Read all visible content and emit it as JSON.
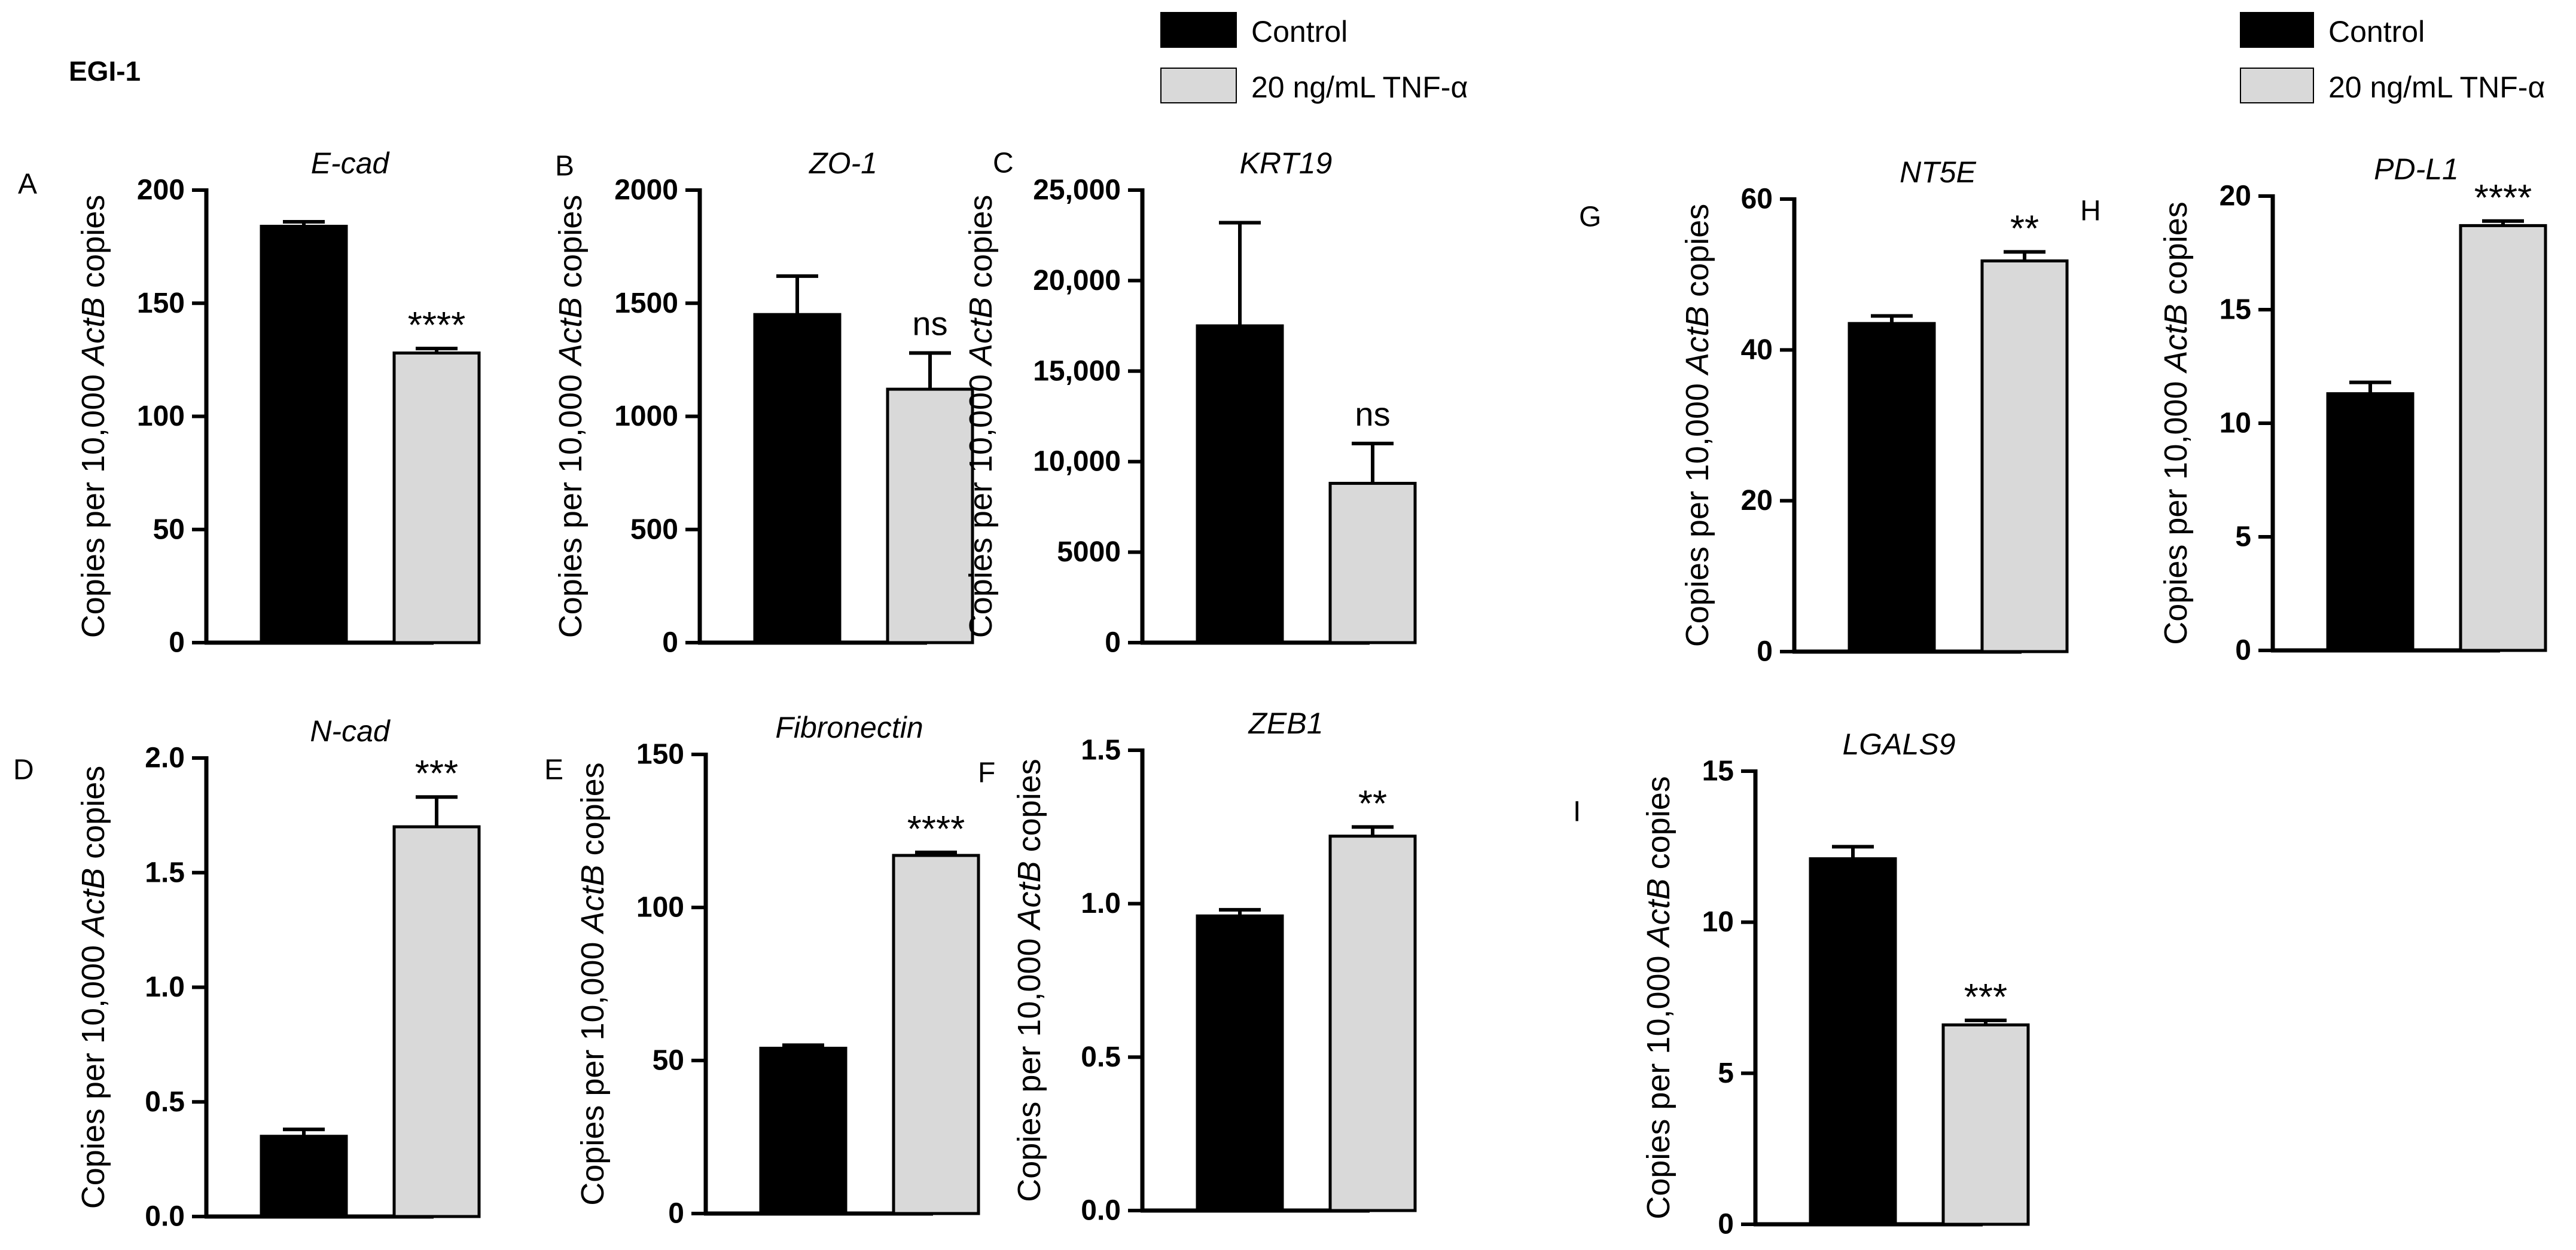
{
  "figure_title": "EGI-1",
  "legends": [
    {
      "control_label": "Control",
      "treatment_label": "20 ng/mL TNF-α"
    },
    {
      "control_label": "Control",
      "treatment_label": "20 ng/mL TNF-α"
    }
  ],
  "colors": {
    "control": "#000000",
    "treatment": "#d9d9d9",
    "axis": "#000000"
  },
  "ylabel_prefix": "Copies per 10,000 ",
  "ylabel_gene": "ActB",
  "ylabel_suffix": " copies",
  "chart_data": [
    {
      "type": "bar",
      "panel": "A",
      "title": "E-cad",
      "categories": [
        "Control",
        "20 ng/mL TNF-α"
      ],
      "values": [
        184,
        128
      ],
      "errors": [
        2,
        2
      ],
      "ylim": [
        0,
        200
      ],
      "ticks": [
        0,
        50,
        100,
        150,
        200
      ],
      "tick_labels": [
        "0",
        "50",
        "100",
        "150",
        "200"
      ],
      "significance": "****"
    },
    {
      "type": "bar",
      "panel": "B",
      "title": "ZO-1",
      "categories": [
        "Control",
        "20 ng/mL TNF-α"
      ],
      "values": [
        1450,
        1120
      ],
      "errors": [
        170,
        160
      ],
      "ylim": [
        0,
        2000
      ],
      "ticks": [
        0,
        500,
        1000,
        1500,
        2000
      ],
      "tick_labels": [
        "0",
        "500",
        "1000",
        "1500",
        "2000"
      ],
      "significance": "ns"
    },
    {
      "type": "bar",
      "panel": "C",
      "title": "KRT19",
      "categories": [
        "Control",
        "20 ng/mL TNF-α"
      ],
      "values": [
        17500,
        8800
      ],
      "errors": [
        5700,
        2200
      ],
      "ylim": [
        0,
        25000
      ],
      "ticks": [
        0,
        5000,
        10000,
        15000,
        20000,
        25000
      ],
      "tick_labels": [
        "0",
        "5000",
        "10,000",
        "15,000",
        "20,000",
        "25,000"
      ],
      "significance": "ns"
    },
    {
      "type": "bar",
      "panel": "G",
      "title": "NT5E",
      "categories": [
        "Control",
        "20 ng/mL TNF-α"
      ],
      "values": [
        43.5,
        51.8
      ],
      "errors": [
        1.0,
        1.2
      ],
      "ylim": [
        0,
        60
      ],
      "ticks": [
        0,
        20,
        40,
        60
      ],
      "tick_labels": [
        "0",
        "20",
        "40",
        "60"
      ],
      "significance": "**"
    },
    {
      "type": "bar",
      "panel": "H",
      "title": "PD-L1",
      "categories": [
        "Control",
        "20 ng/mL TNF-α"
      ],
      "values": [
        11.3,
        18.7
      ],
      "errors": [
        0.5,
        0.2
      ],
      "ylim": [
        0,
        20
      ],
      "ticks": [
        0,
        5,
        10,
        15,
        20
      ],
      "tick_labels": [
        "0",
        "5",
        "10",
        "15",
        "20"
      ],
      "significance": "****"
    },
    {
      "type": "bar",
      "panel": "D",
      "title": "N-cad",
      "categories": [
        "Control",
        "20 ng/mL TNF-α"
      ],
      "values": [
        0.35,
        1.7
      ],
      "errors": [
        0.03,
        0.13
      ],
      "ylim": [
        0,
        2.0
      ],
      "ticks": [
        0,
        0.5,
        1.0,
        1.5,
        2.0
      ],
      "tick_labels": [
        "0.0",
        "0.5",
        "1.0",
        "1.5",
        "2.0"
      ],
      "significance": "***"
    },
    {
      "type": "bar",
      "panel": "E",
      "title": "Fibronectin",
      "categories": [
        "Control",
        "20 ng/mL TNF-α"
      ],
      "values": [
        54,
        117
      ],
      "errors": [
        1,
        1
      ],
      "ylim": [
        0,
        150
      ],
      "ticks": [
        0,
        50,
        100,
        150
      ],
      "tick_labels": [
        "0",
        "50",
        "100",
        "150"
      ],
      "significance": "****"
    },
    {
      "type": "bar",
      "panel": "F",
      "title": "ZEB1",
      "categories": [
        "Control",
        "20 ng/mL TNF-α"
      ],
      "values": [
        0.96,
        1.22
      ],
      "errors": [
        0.02,
        0.03
      ],
      "ylim": [
        0,
        1.5
      ],
      "ticks": [
        0,
        0.5,
        1.0,
        1.5
      ],
      "tick_labels": [
        "0.0",
        "0.5",
        "1.0",
        "1.5"
      ],
      "significance": "**"
    },
    {
      "type": "bar",
      "panel": "I",
      "title": "LGALS9",
      "categories": [
        "Control",
        "20 ng/mL TNF-α"
      ],
      "values": [
        12.1,
        6.6
      ],
      "errors": [
        0.4,
        0.15
      ],
      "ylim": [
        0,
        15
      ],
      "ticks": [
        0,
        5,
        10,
        15
      ],
      "tick_labels": [
        "0",
        "5",
        "10",
        "15"
      ],
      "significance": "***"
    }
  ]
}
